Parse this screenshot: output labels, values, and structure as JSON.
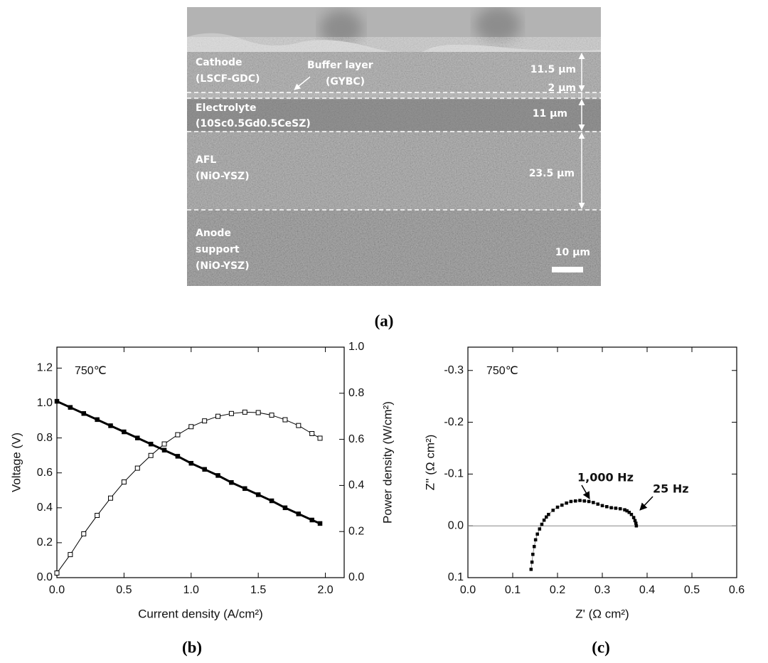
{
  "panel_a": {
    "labels": [
      {
        "lines": [
          "Cathode",
          "(LSCF-GDC)"
        ]
      },
      {
        "lines": [
          "Buffer layer",
          "(GYBC)"
        ]
      },
      {
        "lines": [
          "Electrolyte",
          "(10Sc0.5Gd0.5CeSZ)"
        ]
      },
      {
        "lines": [
          "AFL",
          "(NiO-YSZ)"
        ]
      },
      {
        "lines": [
          "Anode",
          "support",
          "(NiO-YSZ)"
        ]
      }
    ],
    "thicknesses": [
      "11.5 μm",
      "2 μm",
      "11 μm",
      "23.5 μm"
    ],
    "scale_bar": "10 μm",
    "caption": "(a)"
  },
  "chart_data": [
    {
      "type": "line",
      "x": [
        0,
        0.1,
        0.2,
        0.3,
        0.4,
        0.5,
        0.6,
        0.7,
        0.8,
        0.9,
        1.0,
        1.1,
        1.2,
        1.3,
        1.4,
        1.5,
        1.6,
        1.7,
        1.8,
        1.9,
        1.96
      ],
      "series": [
        {
          "color": "#000000",
          "marker": "filled-square",
          "values": [
            1.01,
            0.975,
            0.94,
            0.905,
            0.87,
            0.835,
            0.8,
            0.765,
            0.73,
            0.695,
            0.655,
            0.62,
            0.585,
            0.545,
            0.51,
            0.475,
            0.44,
            0.4,
            0.365,
            0.33,
            0.31
          ]
        },
        {
          "color": "#000000",
          "marker": "open-square",
          "axis": "y2",
          "values": [
            0.02,
            0.1,
            0.19,
            0.27,
            0.345,
            0.415,
            0.475,
            0.53,
            0.58,
            0.62,
            0.655,
            0.68,
            0.7,
            0.712,
            0.718,
            0.716,
            0.705,
            0.685,
            0.66,
            0.625,
            0.605
          ]
        }
      ],
      "xlim": [
        0,
        2.14
      ],
      "xticks": [
        {
          "value": 0,
          "label": "0.0"
        },
        0.5,
        {
          "value": 1,
          "label": "1.0"
        },
        1.5,
        {
          "value": 2,
          "label": "2.0"
        }
      ],
      "ylim": [
        0,
        1.32
      ],
      "yticks": [
        {
          "value": 0,
          "label": "0.0"
        },
        0.2,
        0.4,
        0.6,
        0.8,
        {
          "value": 1,
          "label": "1.0"
        },
        1.2
      ],
      "y2lim": [
        0,
        1
      ],
      "y2ticks": [
        {
          "value": 0,
          "label": "0.0"
        },
        0.2,
        0.4,
        0.6,
        0.8,
        {
          "value": 1,
          "label": "1.0"
        }
      ],
      "xlabel": "Current density (A/cm²)",
      "ylabel": "Voltage (V)",
      "y2label": "Power density (W/cm²)",
      "annotations": [
        "750℃"
      ],
      "caption": "(b)"
    },
    {
      "type": "scatter",
      "x": [
        0.141,
        0.143,
        0.145,
        0.148,
        0.151,
        0.155,
        0.16,
        0.165,
        0.17,
        0.175,
        0.18,
        0.19,
        0.2,
        0.21,
        0.22,
        0.23,
        0.24,
        0.25,
        0.26,
        0.27,
        0.28,
        0.29,
        0.3,
        0.31,
        0.32,
        0.33,
        0.34,
        0.35,
        0.355,
        0.36,
        0.365,
        0.37,
        0.373,
        0.375,
        0.376
      ],
      "series": [
        {
          "color": "#000000",
          "marker": "filled-square",
          "values": [
            0.084,
            0.07,
            0.055,
            0.04,
            0.027,
            0.016,
            0.006,
            -0.003,
            -0.011,
            -0.017,
            -0.022,
            -0.03,
            -0.036,
            -0.04,
            -0.044,
            -0.047,
            -0.048,
            -0.049,
            -0.048,
            -0.047,
            -0.045,
            -0.042,
            -0.039,
            -0.037,
            -0.035,
            -0.034,
            -0.033,
            -0.031,
            -0.029,
            -0.026,
            -0.022,
            -0.016,
            -0.01,
            -0.005,
            0
          ]
        }
      ],
      "xlim": [
        0,
        0.6
      ],
      "xticks": [
        {
          "value": 0,
          "label": "0.0"
        },
        0.1,
        0.2,
        0.3,
        0.4,
        0.5,
        0.6
      ],
      "ylim": [
        0.1,
        -0.345
      ],
      "yticks": [
        0.1,
        {
          "value": 0,
          "label": "0.0"
        },
        -0.1,
        -0.2,
        -0.3
      ],
      "xlabel": "Z' (Ω cm²)",
      "ylabel": "Z'' (Ω cm²)",
      "zero_line": true,
      "annotations": [
        "750℃",
        "1,000 Hz",
        "25 Hz"
      ],
      "caption": "(c)"
    }
  ]
}
